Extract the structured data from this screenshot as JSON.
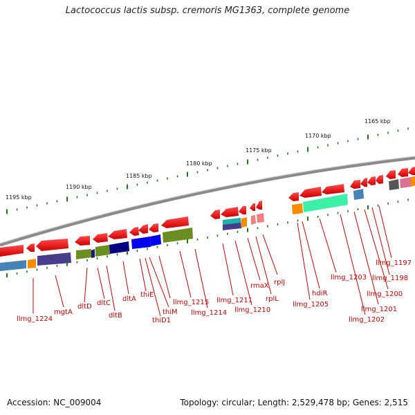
{
  "title": "Lactococcus lactis subsp. cremoris MG1363, complete genome",
  "accession_label": "Accession: NC_009004",
  "summary_label": "Topology: circular; Length: 2,529,478 bp; Genes: 2,515",
  "scale_labels": [
    "1165 kbp",
    "1170 kbp",
    "1175 kbp",
    "1180 kbp",
    "1185 kbp",
    "1190 kbp",
    "1195 kbp"
  ],
  "gene_labels": [
    "llmg_1224",
    "mgtA",
    "dltD",
    "dltC",
    "dltB",
    "dltA",
    "thiE",
    "thiD1",
    "thiM",
    "llmg_1215",
    "llmg_1214",
    "llmg_1211",
    "llmg_1210",
    "rmaX",
    "rplL",
    "rplJ",
    "llmg_1205",
    "hdiR",
    "llmg_1203",
    "llmg_1202",
    "llmg_1201",
    "llmg_1200",
    "llmg_1198",
    "llmg_1197"
  ],
  "colors": {
    "arrow": "#ee1111",
    "label": "#cc0000",
    "tick": "#1a7a1a",
    "genome": "#888888"
  }
}
